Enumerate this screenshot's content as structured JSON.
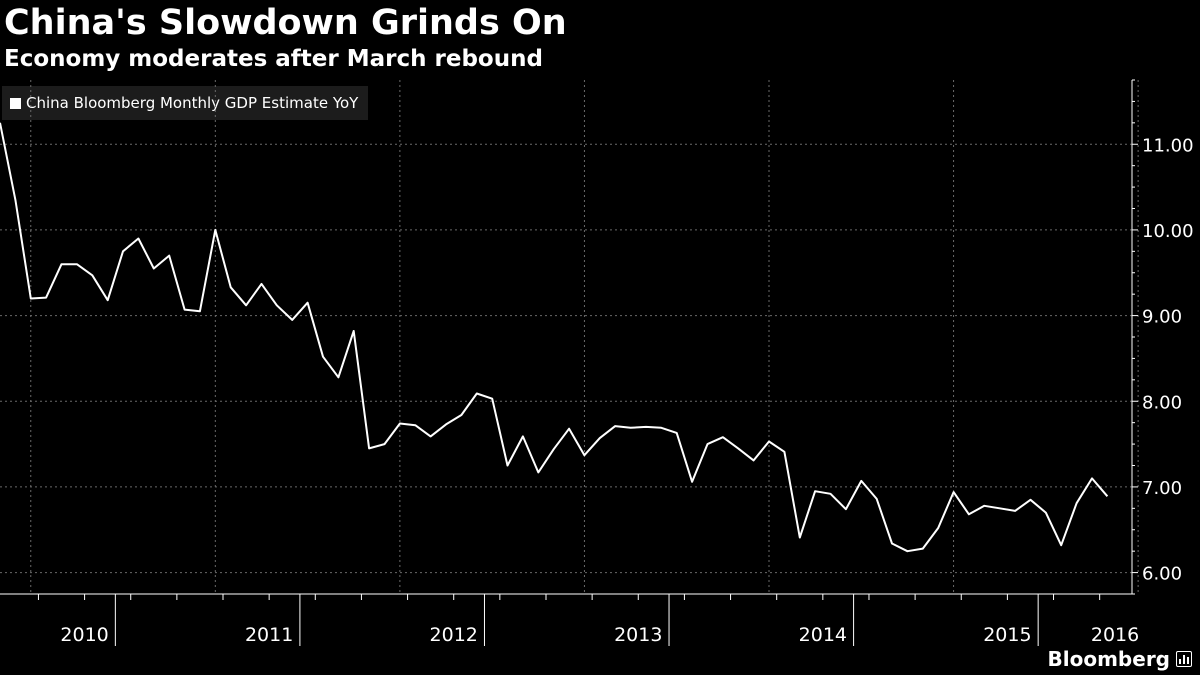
{
  "header": {
    "title": "China's Slowdown Grinds On",
    "subtitle": "Economy moderates after March rebound"
  },
  "legend": {
    "label": "China Bloomberg Monthly GDP Estimate YoY"
  },
  "brand": {
    "name": "Bloomberg",
    "icon": "bar-chart-icon"
  },
  "colors": {
    "background": "#000000",
    "line": "#ffffff",
    "grid": "#6a6a6a",
    "text": "#ffffff"
  },
  "chart_data": {
    "type": "line",
    "title": "China's Slowdown Grinds On",
    "subtitle": "Economy moderates after March rebound",
    "xlabel": "",
    "ylabel": "",
    "ylim": [
      5.75,
      11.75
    ],
    "y_ticks": [
      6.0,
      7.0,
      8.0,
      9.0,
      10.0,
      11.0
    ],
    "y_tick_labels": [
      "6.00",
      "7.00",
      "8.00",
      "9.00",
      "10.00",
      "11.00"
    ],
    "x_year_labels": [
      "2010",
      "2011",
      "2012",
      "2013",
      "2014",
      "2015",
      "2016"
    ],
    "year_label_months": [
      5.5,
      17.5,
      29.5,
      41.5,
      53.5,
      65.5,
      72.5
    ],
    "year_divider_months": [
      7.5,
      19.5,
      31.5,
      43.5,
      55.5,
      67.5
    ],
    "grid_months": [
      2,
      14,
      26,
      38,
      50,
      62,
      74
    ],
    "legend_position": "top-left",
    "series": [
      {
        "name": "China Bloomberg Monthly GDP Estimate YoY",
        "start": "2010-01",
        "values": [
          11.25,
          10.35,
          9.2,
          9.21,
          9.6,
          9.6,
          9.47,
          9.18,
          9.75,
          9.9,
          9.55,
          9.7,
          9.07,
          9.05,
          10.0,
          9.33,
          9.12,
          9.37,
          9.12,
          8.95,
          9.15,
          8.52,
          8.28,
          8.82,
          7.45,
          7.5,
          7.74,
          7.72,
          7.59,
          7.73,
          7.84,
          8.09,
          8.03,
          7.25,
          7.59,
          7.17,
          7.44,
          7.68,
          7.37,
          7.57,
          7.71,
          7.69,
          7.7,
          7.69,
          7.63,
          7.06,
          7.5,
          7.58,
          7.45,
          7.31,
          7.53,
          7.41,
          6.41,
          6.95,
          6.92,
          6.74,
          7.07,
          6.86,
          6.34,
          6.25,
          6.28,
          6.52,
          6.94,
          6.68,
          6.78,
          6.75,
          6.72,
          6.85,
          6.7,
          6.32,
          6.81,
          7.1,
          6.89
        ]
      }
    ]
  }
}
